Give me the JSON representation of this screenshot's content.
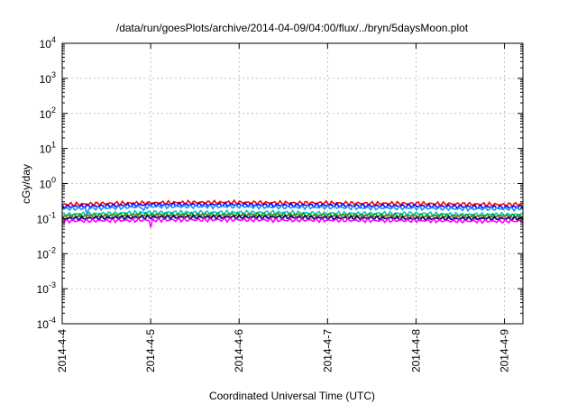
{
  "chart_data": {
    "type": "line",
    "title": "/data/run/goesPlots/archive/2014-04-09/04:00/flux/../bryn/5daysMoon.plot",
    "xlabel": "Coordinated Universal Time (UTC)",
    "ylabel": "cGy/day",
    "y_scale": "log",
    "ylim": [
      0.0001,
      10000
    ],
    "xlim": [
      "2014-04-04 00:00",
      "2014-04-09 05:00"
    ],
    "grid": true,
    "legend": "none",
    "y_ticks": [
      {
        "base": "10",
        "exp": "-4",
        "value": 0.0001
      },
      {
        "base": "10",
        "exp": "-3",
        "value": 0.001
      },
      {
        "base": "10",
        "exp": "-2",
        "value": 0.01
      },
      {
        "base": "10",
        "exp": "-1",
        "value": 0.1
      },
      {
        "base": "10",
        "exp": "0",
        "value": 1
      },
      {
        "base": "10",
        "exp": "1",
        "value": 10
      },
      {
        "base": "10",
        "exp": "2",
        "value": 100
      },
      {
        "base": "10",
        "exp": "3",
        "value": 1000
      },
      {
        "base": "10",
        "exp": "4",
        "value": 10000
      }
    ],
    "x_ticks": [
      {
        "label": "2014-4-4",
        "value": "2014-04-04 00:00"
      },
      {
        "label": "2014-4-5",
        "value": "2014-04-05 00:00"
      },
      {
        "label": "2014-4-6",
        "value": "2014-04-06 00:00"
      },
      {
        "label": "2014-4-7",
        "value": "2014-04-07 00:00"
      },
      {
        "label": "2014-4-8",
        "value": "2014-04-08 00:00"
      },
      {
        "label": "2014-4-9",
        "value": "2014-04-09 00:00"
      }
    ],
    "series": [
      {
        "color": "#ff0000",
        "x": [
          "2014-04-04 00:00",
          "2014-04-04 12:00",
          "2014-04-05 00:00",
          "2014-04-05 12:00",
          "2014-04-06 00:00",
          "2014-04-06 12:00",
          "2014-04-07 00:00",
          "2014-04-07 12:00",
          "2014-04-08 00:00",
          "2014-04-08 12:00",
          "2014-04-09 00:00",
          "2014-04-09 05:00"
        ],
        "y": [
          0.25,
          0.27,
          0.28,
          0.29,
          0.29,
          0.28,
          0.28,
          0.27,
          0.27,
          0.26,
          0.25,
          0.26
        ]
      },
      {
        "color": "#0000ff",
        "x": [
          "2014-04-04 00:00",
          "2014-04-04 12:00",
          "2014-04-05 00:00",
          "2014-04-05 12:00",
          "2014-04-06 00:00",
          "2014-04-06 12:00",
          "2014-04-07 00:00",
          "2014-04-07 12:00",
          "2014-04-08 00:00",
          "2014-04-08 12:00",
          "2014-04-09 00:00",
          "2014-04-09 05:00"
        ],
        "y": [
          0.22,
          0.23,
          0.25,
          0.25,
          0.25,
          0.24,
          0.24,
          0.23,
          0.23,
          0.22,
          0.21,
          0.22
        ]
      },
      {
        "color": "#1e90ff",
        "x": [
          "2014-04-04 00:00",
          "2014-04-04 12:00",
          "2014-04-05 00:00",
          "2014-04-05 12:00",
          "2014-04-06 00:00",
          "2014-04-06 12:00",
          "2014-04-07 00:00",
          "2014-04-07 12:00",
          "2014-04-08 00:00",
          "2014-04-08 12:00",
          "2014-04-09 00:00",
          "2014-04-09 05:00"
        ],
        "y": [
          0.19,
          0.2,
          0.22,
          0.22,
          0.22,
          0.21,
          0.21,
          0.2,
          0.2,
          0.19,
          0.19,
          0.19
        ]
      },
      {
        "color": "#00c8c8",
        "x": [
          "2014-04-04 00:00",
          "2014-04-04 12:00",
          "2014-04-05 00:00",
          "2014-04-05 12:00",
          "2014-04-06 00:00",
          "2014-04-06 12:00",
          "2014-04-07 00:00",
          "2014-04-07 12:00",
          "2014-04-08 00:00",
          "2014-04-08 12:00",
          "2014-04-09 00:00",
          "2014-04-09 05:00"
        ],
        "y": [
          0.13,
          0.14,
          0.15,
          0.15,
          0.15,
          0.15,
          0.14,
          0.14,
          0.14,
          0.13,
          0.13,
          0.13
        ]
      },
      {
        "color": "#00aa00",
        "x": [
          "2014-04-04 00:00",
          "2014-04-04 12:00",
          "2014-04-05 00:00",
          "2014-04-05 12:00",
          "2014-04-06 00:00",
          "2014-04-06 12:00",
          "2014-04-07 00:00",
          "2014-04-07 12:00",
          "2014-04-08 00:00",
          "2014-04-08 12:00",
          "2014-04-09 00:00",
          "2014-04-09 05:00"
        ],
        "y": [
          0.12,
          0.125,
          0.13,
          0.13,
          0.13,
          0.13,
          0.125,
          0.125,
          0.12,
          0.12,
          0.12,
          0.12
        ]
      },
      {
        "color": "#996633",
        "x": [
          "2014-04-04 00:00",
          "2014-04-04 12:00",
          "2014-04-05 00:00",
          "2014-04-05 12:00",
          "2014-04-06 00:00",
          "2014-04-06 12:00",
          "2014-04-07 00:00",
          "2014-04-07 12:00",
          "2014-04-08 00:00",
          "2014-04-08 12:00",
          "2014-04-09 00:00",
          "2014-04-09 05:00"
        ],
        "y": [
          0.11,
          0.115,
          0.12,
          0.12,
          0.12,
          0.12,
          0.115,
          0.115,
          0.11,
          0.11,
          0.11,
          0.11
        ]
      },
      {
        "color": "#000080",
        "x": [
          "2014-04-04 00:00",
          "2014-04-04 12:00",
          "2014-04-05 00:00",
          "2014-04-05 12:00",
          "2014-04-06 00:00",
          "2014-04-06 12:00",
          "2014-04-07 00:00",
          "2014-04-07 12:00",
          "2014-04-08 00:00",
          "2014-04-08 12:00",
          "2014-04-09 00:00",
          "2014-04-09 05:00"
        ],
        "y": [
          0.1,
          0.105,
          0.11,
          0.11,
          0.11,
          0.11,
          0.105,
          0.105,
          0.1,
          0.1,
          0.1,
          0.1
        ]
      },
      {
        "color": "#ff00ff",
        "x": [
          "2014-04-04 00:00",
          "2014-04-04 12:00",
          "2014-04-05 00:00",
          "2014-04-05 12:00",
          "2014-04-06 00:00",
          "2014-04-06 12:00",
          "2014-04-07 00:00",
          "2014-04-07 12:00",
          "2014-04-08 00:00",
          "2014-04-08 12:00",
          "2014-04-09 00:00",
          "2014-04-09 05:00"
        ],
        "y": [
          0.085,
          0.088,
          0.09,
          0.092,
          0.092,
          0.09,
          0.09,
          0.088,
          0.088,
          0.085,
          0.084,
          0.085
        ]
      }
    ]
  }
}
